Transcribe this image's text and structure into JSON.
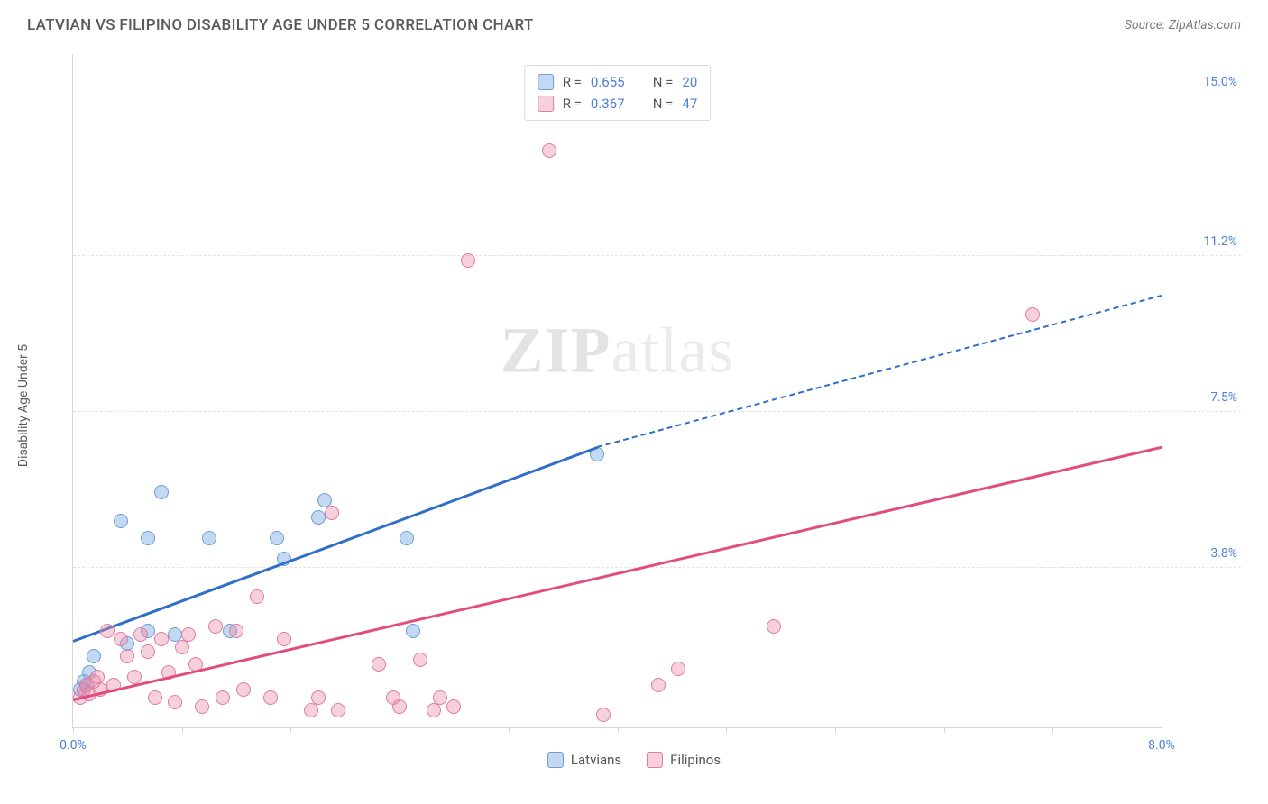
{
  "header": {
    "title": "LATVIAN VS FILIPINO DISABILITY AGE UNDER 5 CORRELATION CHART",
    "source": "Source: ZipAtlas.com"
  },
  "chart": {
    "type": "scatter",
    "ylabel": "Disability Age Under 5",
    "watermark_a": "ZIP",
    "watermark_b": "atlas",
    "xlim": [
      0.0,
      8.0
    ],
    "ylim": [
      0.0,
      16.0
    ],
    "xtick_positions": [
      0.0,
      0.8,
      1.6,
      2.4,
      3.2,
      4.0,
      4.8,
      5.6,
      6.4,
      7.2,
      8.0
    ],
    "xaxis_labels": [
      {
        "x": 0.0,
        "text": "0.0%"
      },
      {
        "x": 8.0,
        "text": "8.0%"
      }
    ],
    "ytick_labels": [
      {
        "y": 3.8,
        "text": "3.8%"
      },
      {
        "y": 7.5,
        "text": "7.5%"
      },
      {
        "y": 11.2,
        "text": "11.2%"
      },
      {
        "y": 15.0,
        "text": "15.0%"
      }
    ],
    "grid_color": "#e2e2e2",
    "background_color": "#ffffff",
    "series": [
      {
        "name": "Latvians",
        "color_fill": "rgba(121,168,225,0.45)",
        "color_stroke": "#6a9fd8",
        "trend_color": "#2f6fc7",
        "R": "0.655",
        "N": "20",
        "points": [
          [
            0.05,
            0.9
          ],
          [
            0.08,
            1.1
          ],
          [
            0.1,
            1.0
          ],
          [
            0.12,
            1.3
          ],
          [
            0.15,
            1.7
          ],
          [
            0.35,
            4.9
          ],
          [
            0.4,
            2.0
          ],
          [
            0.55,
            4.5
          ],
          [
            0.55,
            2.3
          ],
          [
            0.65,
            5.6
          ],
          [
            0.75,
            2.2
          ],
          [
            1.0,
            4.5
          ],
          [
            1.15,
            2.3
          ],
          [
            1.5,
            4.5
          ],
          [
            1.55,
            4.0
          ],
          [
            1.8,
            5.0
          ],
          [
            1.85,
            5.4
          ],
          [
            2.45,
            4.5
          ],
          [
            2.5,
            2.3
          ],
          [
            3.85,
            6.5
          ]
        ],
        "trend": {
          "x1": 0.0,
          "y1": 2.1,
          "x2": 3.85,
          "y2": 6.7,
          "dash_to_x": 8.0,
          "dash_to_y": 10.3
        }
      },
      {
        "name": "Filipinos",
        "color_fill": "rgba(233,140,170,0.40)",
        "color_stroke": "#e07ba0",
        "trend_color": "#e24d7f",
        "R": "0.367",
        "N": "47",
        "points": [
          [
            0.05,
            0.7
          ],
          [
            0.08,
            0.9
          ],
          [
            0.1,
            1.0
          ],
          [
            0.12,
            0.8
          ],
          [
            0.15,
            1.1
          ],
          [
            0.18,
            1.2
          ],
          [
            0.2,
            0.9
          ],
          [
            0.25,
            2.3
          ],
          [
            0.3,
            1.0
          ],
          [
            0.35,
            2.1
          ],
          [
            0.4,
            1.7
          ],
          [
            0.45,
            1.2
          ],
          [
            0.5,
            2.2
          ],
          [
            0.55,
            1.8
          ],
          [
            0.6,
            0.7
          ],
          [
            0.65,
            2.1
          ],
          [
            0.7,
            1.3
          ],
          [
            0.75,
            0.6
          ],
          [
            0.8,
            1.9
          ],
          [
            0.85,
            2.2
          ],
          [
            0.9,
            1.5
          ],
          [
            0.95,
            0.5
          ],
          [
            1.05,
            2.4
          ],
          [
            1.1,
            0.7
          ],
          [
            1.2,
            2.3
          ],
          [
            1.25,
            0.9
          ],
          [
            1.35,
            3.1
          ],
          [
            1.45,
            0.7
          ],
          [
            1.55,
            2.1
          ],
          [
            1.75,
            0.4
          ],
          [
            1.8,
            0.7
          ],
          [
            1.9,
            5.1
          ],
          [
            1.95,
            0.4
          ],
          [
            2.25,
            1.5
          ],
          [
            2.35,
            0.7
          ],
          [
            2.4,
            0.5
          ],
          [
            2.55,
            1.6
          ],
          [
            2.65,
            0.4
          ],
          [
            2.7,
            0.7
          ],
          [
            2.8,
            0.5
          ],
          [
            2.9,
            11.1
          ],
          [
            3.5,
            13.7
          ],
          [
            3.9,
            0.3
          ],
          [
            4.3,
            1.0
          ],
          [
            4.45,
            1.4
          ],
          [
            5.15,
            2.4
          ],
          [
            7.05,
            9.8
          ]
        ],
        "trend": {
          "x1": 0.0,
          "y1": 0.7,
          "x2": 8.0,
          "y2": 6.7
        }
      }
    ]
  },
  "stats_box": {
    "label_R": "R =",
    "label_N": "N ="
  },
  "legend": {
    "items": [
      "Latvians",
      "Filipinos"
    ]
  }
}
